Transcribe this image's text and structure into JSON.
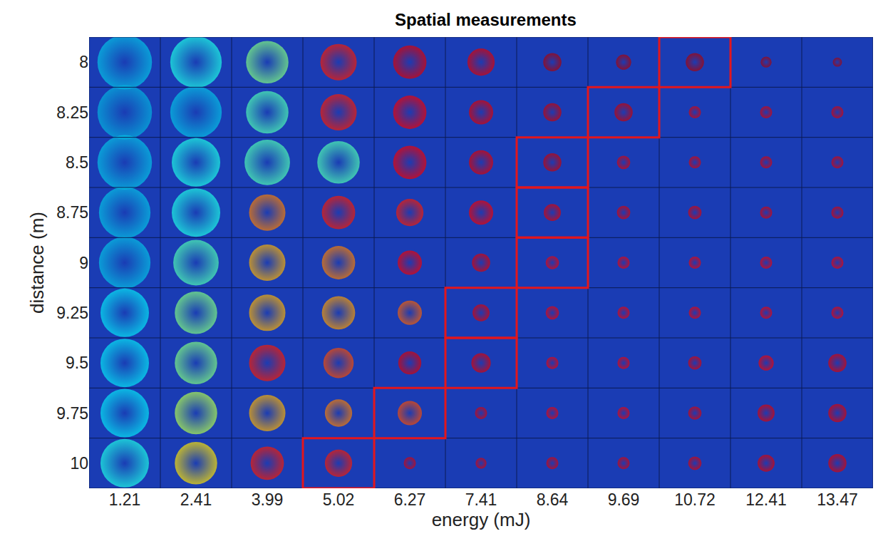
{
  "chart_data": {
    "type": "bubble",
    "title": "Spatial measurements",
    "x_label": "energy (mJ)",
    "y_label": "distance (m)",
    "x": [
      1.21,
      2.41,
      3.99,
      5.02,
      6.27,
      7.41,
      8.64,
      9.69,
      10.72,
      12.41,
      13.47
    ],
    "y": [
      8,
      8.25,
      8.5,
      8.75,
      9,
      9.25,
      9.5,
      9.75,
      10
    ],
    "spot_size": [
      [
        0.9,
        0.85,
        0.7,
        0.6,
        0.55,
        0.45,
        0.3,
        0.25,
        0.3,
        0.18,
        0.15
      ],
      [
        0.9,
        0.85,
        0.7,
        0.6,
        0.55,
        0.4,
        0.3,
        0.3,
        0.2,
        0.2,
        0.2
      ],
      [
        0.9,
        0.8,
        0.75,
        0.7,
        0.55,
        0.4,
        0.3,
        0.22,
        0.2,
        0.2,
        0.2
      ],
      [
        0.85,
        0.8,
        0.6,
        0.55,
        0.45,
        0.4,
        0.28,
        0.22,
        0.22,
        0.2,
        0.2
      ],
      [
        0.85,
        0.75,
        0.6,
        0.55,
        0.4,
        0.3,
        0.22,
        0.2,
        0.2,
        0.2,
        0.2
      ],
      [
        0.8,
        0.7,
        0.6,
        0.55,
        0.4,
        0.28,
        0.22,
        0.2,
        0.2,
        0.2,
        0.2
      ],
      [
        0.8,
        0.7,
        0.6,
        0.5,
        0.38,
        0.32,
        0.2,
        0.2,
        0.22,
        0.25,
        0.3
      ],
      [
        0.8,
        0.7,
        0.6,
        0.45,
        0.4,
        0.2,
        0.2,
        0.2,
        0.22,
        0.28,
        0.3
      ],
      [
        0.8,
        0.7,
        0.55,
        0.45,
        0.2,
        0.18,
        0.2,
        0.2,
        0.22,
        0.28,
        0.3
      ]
    ],
    "peak": [
      [
        0.3,
        0.4,
        0.5,
        0.85,
        0.9,
        0.9,
        0.95,
        0.95,
        0.95,
        0.95,
        0.95
      ],
      [
        0.28,
        0.3,
        0.45,
        0.85,
        0.88,
        0.9,
        0.92,
        0.92,
        0.9,
        0.9,
        0.9
      ],
      [
        0.3,
        0.4,
        0.45,
        0.45,
        0.88,
        0.9,
        0.92,
        0.9,
        0.9,
        0.9,
        0.9
      ],
      [
        0.3,
        0.4,
        0.75,
        0.85,
        0.85,
        0.88,
        0.9,
        0.9,
        0.9,
        0.9,
        0.9
      ],
      [
        0.3,
        0.45,
        0.7,
        0.75,
        0.88,
        0.9,
        0.88,
        0.88,
        0.88,
        0.88,
        0.88
      ],
      [
        0.35,
        0.5,
        0.7,
        0.72,
        0.78,
        0.9,
        0.88,
        0.88,
        0.88,
        0.88,
        0.88
      ],
      [
        0.35,
        0.5,
        0.85,
        0.8,
        0.9,
        0.9,
        0.88,
        0.88,
        0.9,
        0.88,
        0.9
      ],
      [
        0.35,
        0.55,
        0.7,
        0.75,
        0.8,
        0.9,
        0.88,
        0.88,
        0.9,
        0.9,
        0.9
      ],
      [
        0.4,
        0.65,
        0.85,
        0.85,
        0.9,
        0.9,
        0.9,
        0.9,
        0.9,
        0.9,
        0.9
      ]
    ],
    "color_range": [
      0,
      1
    ],
    "highlighted": [
      {
        "energy": 10.72,
        "distance": 8
      },
      {
        "energy": 9.69,
        "distance": 8.25
      },
      {
        "energy": 8.64,
        "distance": 8.5
      },
      {
        "energy": 8.64,
        "distance": 8.75
      },
      {
        "energy": 8.64,
        "distance": 9
      },
      {
        "energy": 7.41,
        "distance": 9.25
      },
      {
        "energy": 7.41,
        "distance": 9.5
      },
      {
        "energy": 6.27,
        "distance": 9.75
      },
      {
        "energy": 5.02,
        "distance": 10
      }
    ]
  }
}
